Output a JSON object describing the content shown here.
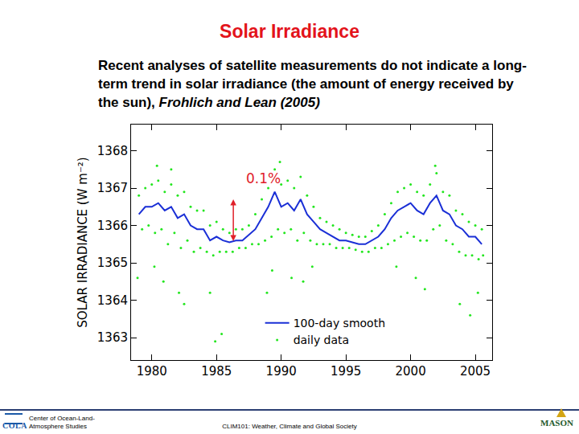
{
  "slide": {
    "title": "Solar Irradiance",
    "text": "Recent analyses of satellite measurements do not indicate a long-term trend in solar irradiance (the amount of energy received by the sun), ",
    "citation": "Frohlich and Lean (2005)",
    "footer_left": [
      "Center of Ocean-Land-",
      "Atmosphere Studies"
    ],
    "footer_center": "CLIM101: Weather, Climate and Global Society",
    "logo_left": "COLA",
    "logo_right": "MASON"
  },
  "chart_data": {
    "type": "scatter",
    "y_label": "SOLAR IRRADIANCE (W m⁻²)",
    "xlim": [
      1978.4,
      2006.3
    ],
    "xticks": [
      1980,
      1985,
      1990,
      1995,
      2000,
      2005
    ],
    "ylim": [
      1362.4,
      1368.7
    ],
    "yticks": [
      1363,
      1364,
      1365,
      1366,
      1367,
      1368
    ],
    "grid": false,
    "legend": "bottom",
    "annotations": [
      {
        "text": "0.1%",
        "x": 1988.6,
        "y": 1367.25,
        "color": "#e0202a",
        "arrow": {
          "x": 1986.3,
          "from": 1365.55,
          "to": 1366.7
        }
      }
    ],
    "series": [
      {
        "name": "100-day smooth",
        "type": "line",
        "color": "#1a2fd6",
        "line_style": "solid",
        "x": [
          1979.0,
          1979.5,
          1980.0,
          1980.5,
          1981.0,
          1981.5,
          1982.0,
          1982.5,
          1983.0,
          1983.5,
          1984.0,
          1984.5,
          1985.0,
          1985.5,
          1986.0,
          1986.5,
          1987.0,
          1987.5,
          1988.0,
          1988.5,
          1989.0,
          1989.5,
          1990.0,
          1990.5,
          1991.0,
          1991.5,
          1992.0,
          1992.5,
          1993.0,
          1993.5,
          1994.0,
          1994.5,
          1995.0,
          1995.5,
          1996.0,
          1996.5,
          1997.0,
          1997.5,
          1998.0,
          1998.5,
          1999.0,
          1999.5,
          2000.0,
          2000.5,
          2001.0,
          2001.5,
          2002.0,
          2002.5,
          2003.0,
          2003.5,
          2004.0,
          2004.5,
          2005.0,
          2005.5
        ],
        "values": [
          1366.3,
          1366.5,
          1366.5,
          1366.6,
          1366.4,
          1366.5,
          1366.2,
          1366.3,
          1366.0,
          1365.9,
          1365.9,
          1365.6,
          1365.7,
          1365.6,
          1365.55,
          1365.6,
          1365.6,
          1365.75,
          1365.9,
          1366.2,
          1366.5,
          1366.9,
          1366.5,
          1366.6,
          1366.4,
          1366.7,
          1366.3,
          1366.1,
          1365.9,
          1365.8,
          1365.7,
          1365.6,
          1365.6,
          1365.55,
          1365.5,
          1365.5,
          1365.6,
          1365.7,
          1365.9,
          1366.2,
          1366.4,
          1366.5,
          1366.6,
          1366.4,
          1366.3,
          1366.6,
          1366.8,
          1366.4,
          1366.3,
          1366.0,
          1365.9,
          1365.7,
          1365.7,
          1365.5
        ]
      },
      {
        "name": "daily data",
        "type": "scatter",
        "color": "#22e61e",
        "marker": "dot",
        "x": [
          1979.0,
          1979.25,
          1979.5,
          1979.75,
          1980.0,
          1980.25,
          1980.5,
          1980.75,
          1981.0,
          1981.25,
          1981.5,
          1981.75,
          1982.0,
          1982.25,
          1982.5,
          1982.75,
          1983.0,
          1983.25,
          1983.5,
          1983.75,
          1984.0,
          1984.25,
          1984.5,
          1984.75,
          1985.0,
          1985.25,
          1985.5,
          1985.75,
          1986.0,
          1986.25,
          1986.5,
          1986.75,
          1987.0,
          1987.25,
          1987.5,
          1987.75,
          1988.0,
          1988.25,
          1988.5,
          1988.75,
          1989.0,
          1989.25,
          1989.5,
          1989.75,
          1990.0,
          1990.25,
          1990.5,
          1990.75,
          1991.0,
          1991.25,
          1991.5,
          1991.75,
          1992.0,
          1992.25,
          1992.5,
          1992.75,
          1993.0,
          1993.25,
          1993.5,
          1993.75,
          1994.0,
          1994.25,
          1994.5,
          1994.75,
          1995.0,
          1995.25,
          1995.5,
          1995.75,
          1996.0,
          1996.25,
          1996.5,
          1996.75,
          1997.0,
          1997.25,
          1997.5,
          1997.75,
          1998.0,
          1998.25,
          1998.5,
          1998.75,
          1999.0,
          1999.25,
          1999.5,
          1999.75,
          2000.0,
          2000.25,
          2000.5,
          2000.75,
          2001.0,
          2001.25,
          2001.5,
          2001.75,
          2002.0,
          2002.25,
          2002.5,
          2002.75,
          2003.0,
          2003.25,
          2003.5,
          2003.75,
          2004.0,
          2004.25,
          2004.5,
          2004.75,
          2005.0,
          2005.25,
          2005.5,
          2005.6,
          1980.2,
          1980.9,
          1982.1,
          1982.5,
          1984.5,
          1984.9,
          1985.4,
          1988.9,
          1989.3,
          1990.8,
          1991.7,
          1992.4,
          1998.9,
          2000.4,
          2001.1,
          2003.8,
          2004.6,
          2005.2,
          1978.9,
          1980.4,
          1989.9,
          2001.9,
          1981.5
        ],
        "values": [
          1366.8,
          1365.9,
          1367.0,
          1366.0,
          1367.1,
          1365.8,
          1367.2,
          1365.9,
          1366.9,
          1365.5,
          1367.1,
          1365.8,
          1366.8,
          1365.4,
          1366.9,
          1365.6,
          1366.5,
          1365.3,
          1366.4,
          1365.4,
          1366.4,
          1365.3,
          1366.0,
          1365.2,
          1366.1,
          1365.3,
          1365.9,
          1365.3,
          1365.8,
          1365.3,
          1365.9,
          1365.4,
          1365.9,
          1365.4,
          1366.0,
          1365.5,
          1366.3,
          1365.5,
          1366.7,
          1365.6,
          1367.0,
          1365.7,
          1367.5,
          1365.9,
          1367.1,
          1365.8,
          1367.2,
          1365.9,
          1367.0,
          1365.6,
          1367.3,
          1365.8,
          1366.8,
          1365.6,
          1366.5,
          1365.5,
          1366.2,
          1365.5,
          1366.1,
          1365.5,
          1366.0,
          1365.4,
          1365.9,
          1365.4,
          1365.8,
          1365.4,
          1365.75,
          1365.35,
          1365.7,
          1365.3,
          1365.7,
          1365.3,
          1365.85,
          1365.4,
          1366.0,
          1365.4,
          1366.3,
          1365.5,
          1366.6,
          1365.6,
          1366.9,
          1365.7,
          1367.0,
          1365.8,
          1367.1,
          1365.7,
          1366.9,
          1365.6,
          1366.8,
          1365.6,
          1367.1,
          1365.9,
          1367.4,
          1366.0,
          1366.9,
          1365.6,
          1366.8,
          1365.5,
          1366.4,
          1365.3,
          1366.3,
          1365.2,
          1366.1,
          1365.2,
          1366.0,
          1365.1,
          1365.9,
          1365.2,
          1364.9,
          1364.5,
          1364.2,
          1363.9,
          1364.2,
          1362.9,
          1363.1,
          1364.2,
          1364.8,
          1364.6,
          1364.5,
          1364.9,
          1364.9,
          1364.6,
          1364.3,
          1363.9,
          1363.6,
          1364.2,
          1364.6,
          1367.6,
          1367.7,
          1367.6,
          1367.5
        ]
      }
    ]
  }
}
